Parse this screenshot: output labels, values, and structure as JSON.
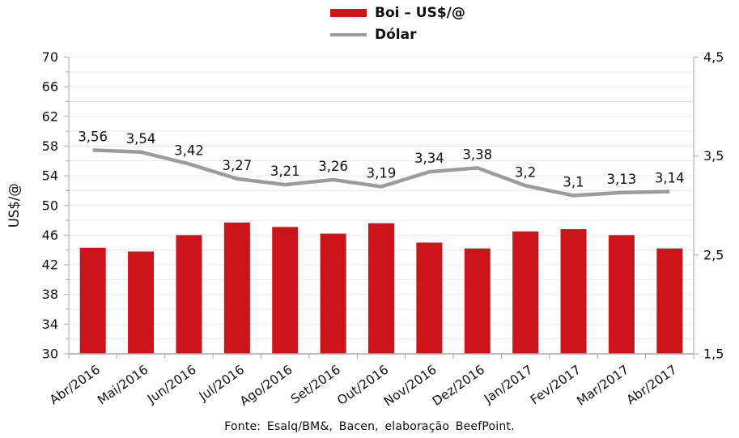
{
  "legend": {
    "items": [
      {
        "label": "Boi – US$/@",
        "swatch": "bar",
        "color": "#cd1418"
      },
      {
        "label": "Dólar",
        "swatch": "line",
        "color": "#9c9c9c"
      }
    ]
  },
  "footer": {
    "source": "Fonte: Esalq/BM&, Bacen, elaboração BeefPoint."
  },
  "colors": {
    "bar": "#cd1418",
    "line": "#9c9c9c",
    "axis": "#a6a6a6",
    "grid": "#e9e9e9",
    "text": "#111111"
  },
  "chart_data": {
    "type": "bar",
    "subtype": "bar+line combo, dual axis",
    "categories": [
      "Abr/2016",
      "Mai/2016",
      "Jun/2016",
      "Jul/2016",
      "Ago/2016",
      "Set/2016",
      "Out/2016",
      "Nov/2016",
      "Dez/2016",
      "Jan/2017",
      "Fev/2017",
      "Mar/2017",
      "Abr/2017"
    ],
    "series": [
      {
        "name": "Boi – US$/@",
        "type": "bar",
        "axis": "left",
        "color": "#cd1418",
        "values": [
          44.3,
          43.8,
          46.0,
          47.7,
          47.1,
          46.2,
          47.6,
          45.0,
          44.2,
          46.5,
          46.8,
          46.0,
          44.2
        ]
      },
      {
        "name": "Dólar",
        "type": "line",
        "axis": "right",
        "color": "#9c9c9c",
        "values": [
          3.56,
          3.54,
          3.42,
          3.27,
          3.21,
          3.26,
          3.19,
          3.34,
          3.38,
          3.2,
          3.1,
          3.13,
          3.14
        ],
        "point_labels": [
          "3,56",
          "3,54",
          "3,42",
          "3,27",
          "3,21",
          "3,26",
          "3,19",
          "3,34",
          "3,38",
          "3,2",
          "3,1",
          "3,13",
          "3,14"
        ]
      }
    ],
    "left_axis": {
      "title": "US$/@",
      "min": 30,
      "max": 70,
      "major_step": 4,
      "minor_step": 2,
      "tick_labels": [
        "70",
        "66",
        "62",
        "58",
        "54",
        "50",
        "46",
        "42",
        "38",
        "34",
        "30"
      ]
    },
    "right_axis": {
      "title": "",
      "min": 1.5,
      "max": 4.5,
      "major_step": 1,
      "tick_labels": [
        "4,5",
        "3,5",
        "2,5",
        "1,5"
      ],
      "tick_values": [
        4.5,
        3.5,
        2.5,
        1.5
      ]
    },
    "grid": "horizontal minor gridlines on",
    "legend_position": "top-center",
    "title": "",
    "xlabel": "",
    "ylabel": "US$/@"
  }
}
